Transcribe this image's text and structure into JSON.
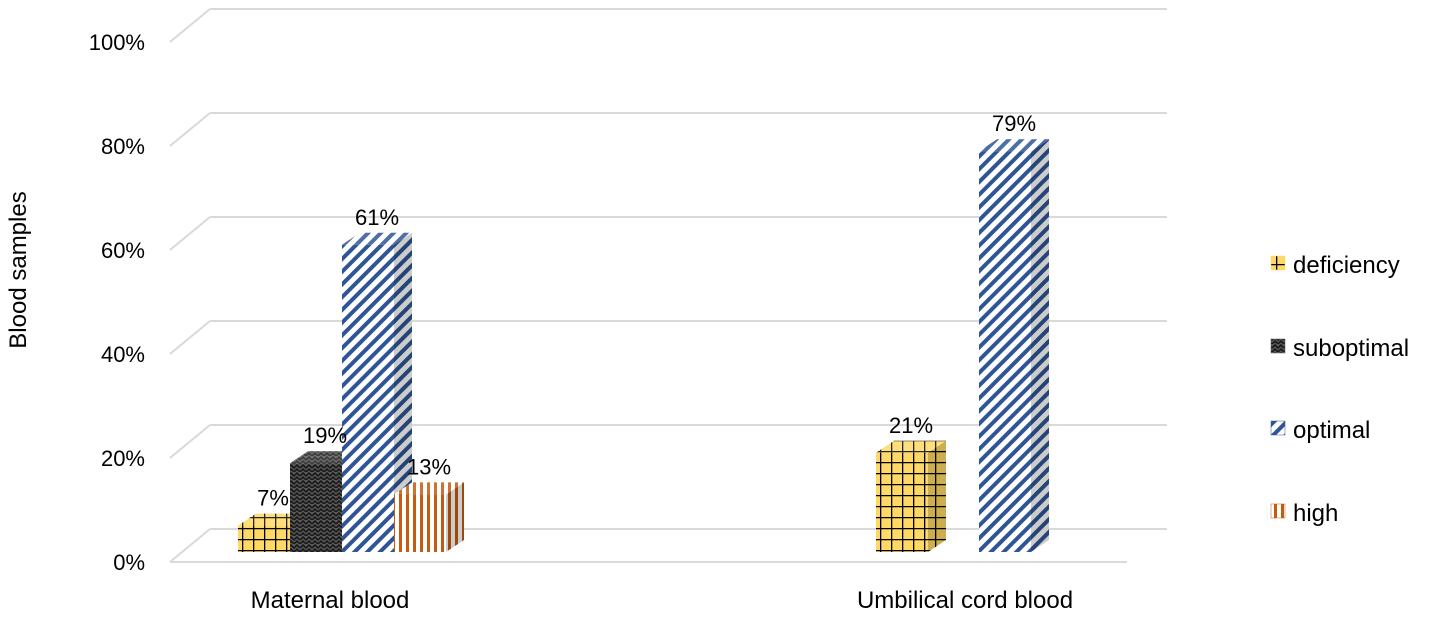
{
  "chart_data": {
    "type": "bar",
    "title": "",
    "xlabel": "",
    "ylabel": "Blood samples",
    "ylim": [
      0,
      100
    ],
    "yticks": [
      "0%",
      "20%",
      "40%",
      "60%",
      "80%",
      "100%"
    ],
    "categories": [
      "Maternal blood",
      "Umbilical cord blood"
    ],
    "series": [
      {
        "name": "deficiency",
        "values": [
          7,
          21
        ],
        "labels": [
          "7%",
          "21%"
        ],
        "color": "#ffd966",
        "pattern": "grid"
      },
      {
        "name": "suboptimal",
        "values": [
          19,
          null
        ],
        "labels": [
          "19%",
          ""
        ],
        "color": "#595959",
        "pattern": "zigzag"
      },
      {
        "name": "optimal",
        "values": [
          61,
          79
        ],
        "labels": [
          "61%",
          "79%"
        ],
        "color": "#2f5597",
        "pattern": "diagonal"
      },
      {
        "name": "high",
        "values": [
          13,
          null
        ],
        "labels": [
          "13%",
          ""
        ],
        "color": "#c55a11",
        "pattern": "vertical"
      }
    ],
    "grid": true,
    "legend_position": "right",
    "three_d": true
  }
}
